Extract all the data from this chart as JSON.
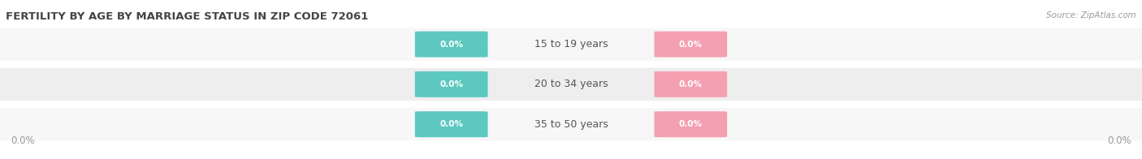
{
  "title": "FERTILITY BY AGE BY MARRIAGE STATUS IN ZIP CODE 72061",
  "source": "Source: ZipAtlas.com",
  "categories": [
    "15 to 19 years",
    "20 to 34 years",
    "35 to 50 years"
  ],
  "married_values": [
    0.0,
    0.0,
    0.0
  ],
  "unmarried_values": [
    0.0,
    0.0,
    0.0
  ],
  "married_color": "#5DC8C0",
  "unmarried_color": "#F4A0B0",
  "bar_bg_color": "#E8E8E8",
  "bar_bg_color2": "#F0F0F0",
  "row_bg_even": "#F7F7F7",
  "row_bg_odd": "#EEEEEE",
  "title_fontsize": 9.5,
  "tick_fontsize": 8.5,
  "legend_fontsize": 9,
  "value_label_color": "#FFFFFF",
  "category_label_color": "#555555",
  "axis_label_color": "#999999"
}
